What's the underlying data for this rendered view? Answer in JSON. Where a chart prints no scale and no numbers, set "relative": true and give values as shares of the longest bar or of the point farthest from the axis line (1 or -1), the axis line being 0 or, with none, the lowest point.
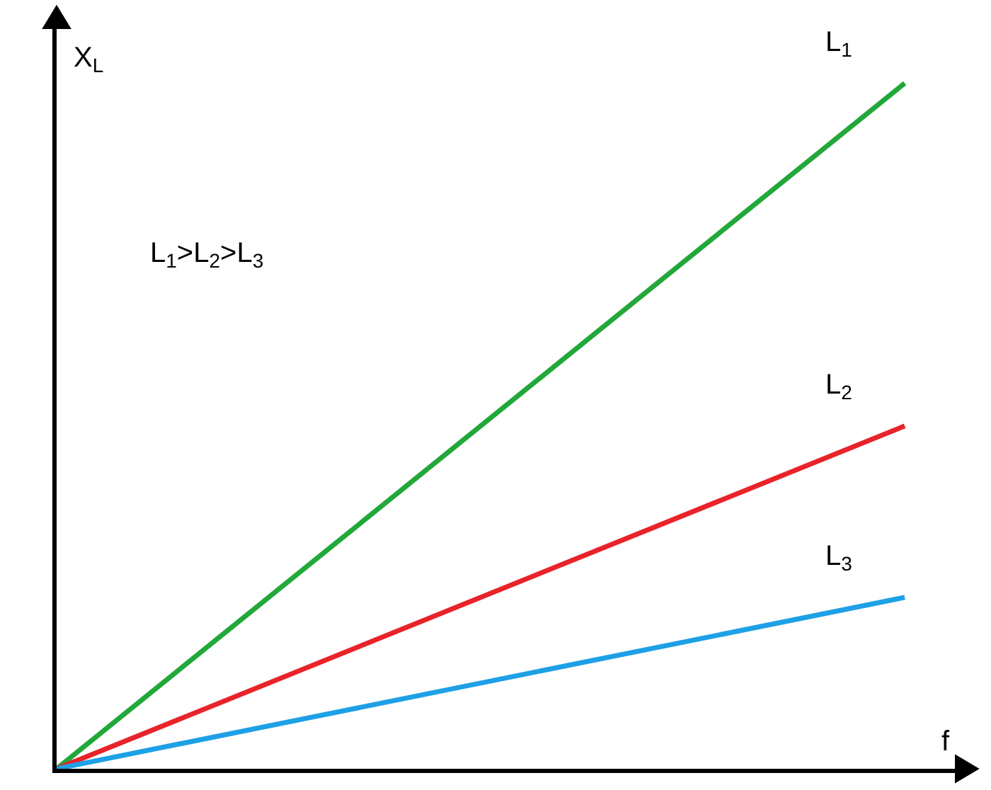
{
  "chart_data": {
    "type": "line",
    "relative": true,
    "xlabel": "f",
    "ylabel": "X$_{L}$",
    "categories": [
      null,
      null
    ],
    "series": [
      {
        "name": "L$_{1}$",
        "color": "#22a83a",
        "values": [
          0,
          1
        ]
      },
      {
        "name": "L$_{2}$",
        "color": "#e8232a",
        "values": [
          0,
          0.5
        ]
      },
      {
        "name": "L$_{3}$",
        "color": "#1ea0e6",
        "values": [
          0,
          0.25
        ]
      }
    ],
    "annotations": [
      "L$_{1}$>L$_{2}$>L$_{3}$"
    ],
    "legend": false,
    "marker": "none",
    "line_style": "solid"
  }
}
